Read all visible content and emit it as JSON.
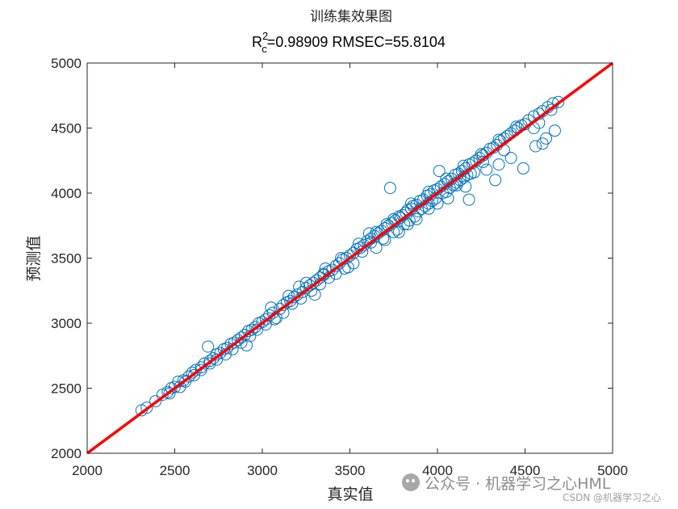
{
  "chart_data": {
    "type": "scatter",
    "title": "训练集效果图",
    "subtitle": {
      "r_symbol": "R",
      "sup": "2",
      "sub": "c",
      "text": "=0.98909  RMSEC=55.8104"
    },
    "xlabel": "真实值",
    "ylabel": "预测值",
    "xlim": [
      2000,
      5000
    ],
    "ylim": [
      2000,
      5000
    ],
    "xticks": [
      "2000",
      "2500",
      "3000",
      "3500",
      "4000",
      "4500",
      "5000"
    ],
    "yticks": [
      "2000",
      "2500",
      "3000",
      "3500",
      "4000",
      "4500",
      "5000"
    ],
    "grid": false,
    "legend": "none",
    "series": [
      {
        "marker": "open-circle",
        "color": "#0072BD",
        "points": [
          [
            2310,
            2330
          ],
          [
            2340,
            2350
          ],
          [
            2390,
            2400
          ],
          [
            2430,
            2450
          ],
          [
            2460,
            2470
          ],
          [
            2480,
            2500
          ],
          [
            2500,
            2510
          ],
          [
            2520,
            2550
          ],
          [
            2550,
            2560
          ],
          [
            2580,
            2590
          ],
          [
            2600,
            2620
          ],
          [
            2620,
            2640
          ],
          [
            2650,
            2660
          ],
          [
            2670,
            2690
          ],
          [
            2690,
            2820
          ],
          [
            2700,
            2710
          ],
          [
            2720,
            2730
          ],
          [
            2740,
            2760
          ],
          [
            2760,
            2770
          ],
          [
            2780,
            2800
          ],
          [
            2800,
            2810
          ],
          [
            2820,
            2840
          ],
          [
            2840,
            2850
          ],
          [
            2860,
            2870
          ],
          [
            2880,
            2890
          ],
          [
            2900,
            2910
          ],
          [
            2910,
            2830
          ],
          [
            2920,
            2940
          ],
          [
            2940,
            2950
          ],
          [
            2960,
            2970
          ],
          [
            2980,
            3000
          ],
          [
            3000,
            3010
          ],
          [
            3020,
            3030
          ],
          [
            3040,
            3060
          ],
          [
            3060,
            3080
          ],
          [
            3080,
            3040
          ],
          [
            3100,
            3110
          ],
          [
            3120,
            3140
          ],
          [
            3140,
            3160
          ],
          [
            3160,
            3170
          ],
          [
            3180,
            3200
          ],
          [
            3200,
            3220
          ],
          [
            3210,
            3280
          ],
          [
            3230,
            3240
          ],
          [
            3250,
            3270
          ],
          [
            3270,
            3290
          ],
          [
            3290,
            3310
          ],
          [
            3300,
            3220
          ],
          [
            3310,
            3330
          ],
          [
            3330,
            3350
          ],
          [
            3350,
            3370
          ],
          [
            3360,
            3420
          ],
          [
            3380,
            3400
          ],
          [
            3400,
            3410
          ],
          [
            3420,
            3440
          ],
          [
            3440,
            3460
          ],
          [
            3460,
            3490
          ],
          [
            3480,
            3500
          ],
          [
            3490,
            3430
          ],
          [
            3500,
            3520
          ],
          [
            3520,
            3540
          ],
          [
            3540,
            3570
          ],
          [
            3560,
            3580
          ],
          [
            3580,
            3600
          ],
          [
            3600,
            3630
          ],
          [
            3610,
            3690
          ],
          [
            3620,
            3650
          ],
          [
            3640,
            3670
          ],
          [
            3650,
            3580
          ],
          [
            3660,
            3690
          ],
          [
            3680,
            3710
          ],
          [
            3690,
            3650
          ],
          [
            3700,
            3730
          ],
          [
            3710,
            3760
          ],
          [
            3720,
            3750
          ],
          [
            3730,
            4040
          ],
          [
            3740,
            3770
          ],
          [
            3750,
            3700
          ],
          [
            3760,
            3790
          ],
          [
            3770,
            3720
          ],
          [
            3780,
            3820
          ],
          [
            3790,
            3810
          ],
          [
            3800,
            3830
          ],
          [
            3810,
            3760
          ],
          [
            3820,
            3850
          ],
          [
            3830,
            3870
          ],
          [
            3840,
            3790
          ],
          [
            3850,
            3880
          ],
          [
            3860,
            3900
          ],
          [
            3870,
            3820
          ],
          [
            3880,
            3910
          ],
          [
            3890,
            3860
          ],
          [
            3900,
            3940
          ],
          [
            3910,
            3880
          ],
          [
            3920,
            3950
          ],
          [
            3930,
            3900
          ],
          [
            3940,
            3980
          ],
          [
            3950,
            3920
          ],
          [
            3960,
            3990
          ],
          [
            3970,
            3940
          ],
          [
            3980,
            4020
          ],
          [
            3990,
            3960
          ],
          [
            4000,
            4030
          ],
          [
            4010,
            4170
          ],
          [
            4020,
            4050
          ],
          [
            4030,
            4000
          ],
          [
            4040,
            4070
          ],
          [
            4050,
            4010
          ],
          [
            4060,
            4090
          ],
          [
            4070,
            4040
          ],
          [
            4080,
            4110
          ],
          [
            4090,
            4060
          ],
          [
            4100,
            4140
          ],
          [
            4110,
            4080
          ],
          [
            4120,
            4150
          ],
          [
            4130,
            4100
          ],
          [
            4140,
            4170
          ],
          [
            4150,
            4120
          ],
          [
            4160,
            4190
          ],
          [
            4170,
            4140
          ],
          [
            4180,
            4220
          ],
          [
            4190,
            4150
          ],
          [
            4200,
            4230
          ],
          [
            4210,
            4160
          ],
          [
            4220,
            4250
          ],
          [
            4240,
            4270
          ],
          [
            4260,
            4290
          ],
          [
            4280,
            4310
          ],
          [
            4300,
            4340
          ],
          [
            4320,
            4350
          ],
          [
            4340,
            4370
          ],
          [
            4360,
            4400
          ],
          [
            4380,
            4420
          ],
          [
            4400,
            4440
          ],
          [
            4420,
            4460
          ],
          [
            4440,
            4480
          ],
          [
            4460,
            4500
          ],
          [
            4480,
            4520
          ],
          [
            4500,
            4530
          ],
          [
            4520,
            4560
          ],
          [
            4550,
            4590
          ],
          [
            4580,
            4610
          ],
          [
            4600,
            4630
          ],
          [
            4630,
            4660
          ],
          [
            4660,
            4690
          ],
          [
            4690,
            4700
          ],
          [
            4580,
            4540
          ],
          [
            4600,
            4380
          ],
          [
            4560,
            4360
          ],
          [
            4490,
            4190
          ],
          [
            4420,
            4270
          ],
          [
            4380,
            4330
          ],
          [
            4350,
            4220
          ],
          [
            4330,
            4100
          ],
          [
            4280,
            4180
          ],
          [
            4260,
            4240
          ],
          [
            4180,
            3950
          ],
          [
            4160,
            4050
          ],
          [
            4110,
            4060
          ],
          [
            4060,
            3960
          ],
          [
            4000,
            3920
          ],
          [
            3950,
            3880
          ],
          [
            3880,
            3800
          ],
          [
            3830,
            3760
          ],
          [
            3780,
            3700
          ],
          [
            3700,
            3640
          ],
          [
            3620,
            3620
          ],
          [
            3570,
            3550
          ],
          [
            3520,
            3460
          ],
          [
            3470,
            3420
          ],
          [
            3420,
            3380
          ],
          [
            3380,
            3350
          ],
          [
            3330,
            3300
          ],
          [
            3280,
            3250
          ],
          [
            3220,
            3190
          ],
          [
            3170,
            3150
          ],
          [
            3120,
            3080
          ],
          [
            3070,
            3030
          ],
          [
            3020,
            2990
          ],
          [
            2970,
            2950
          ],
          [
            2930,
            2900
          ],
          [
            2880,
            2850
          ],
          [
            2830,
            2800
          ],
          [
            2790,
            2760
          ],
          [
            2740,
            2720
          ],
          [
            2700,
            2690
          ],
          [
            2650,
            2640
          ],
          [
            2610,
            2600
          ],
          [
            2560,
            2550
          ],
          [
            2530,
            2510
          ],
          [
            2470,
            2460
          ],
          [
            3050,
            3120
          ],
          [
            3150,
            3210
          ],
          [
            3250,
            3310
          ],
          [
            3350,
            3380
          ],
          [
            3450,
            3500
          ],
          [
            3550,
            3610
          ],
          [
            3650,
            3700
          ],
          [
            3750,
            3800
          ],
          [
            3850,
            3920
          ],
          [
            3950,
            4010
          ],
          [
            4050,
            4110
          ],
          [
            4150,
            4210
          ],
          [
            4250,
            4300
          ],
          [
            4350,
            4410
          ],
          [
            4450,
            4510
          ],
          [
            4550,
            4500
          ],
          [
            4650,
            4640
          ],
          [
            4670,
            4480
          ],
          [
            4620,
            4420
          ]
        ]
      },
      {
        "line": "identity",
        "color": "#FF0000",
        "points": [
          [
            2000,
            2000
          ],
          [
            5000,
            5000
          ]
        ]
      }
    ]
  },
  "watermark": {
    "line1": "公众号 · 机器学习之心HML",
    "line2": "CSDN @机器学习之心"
  }
}
